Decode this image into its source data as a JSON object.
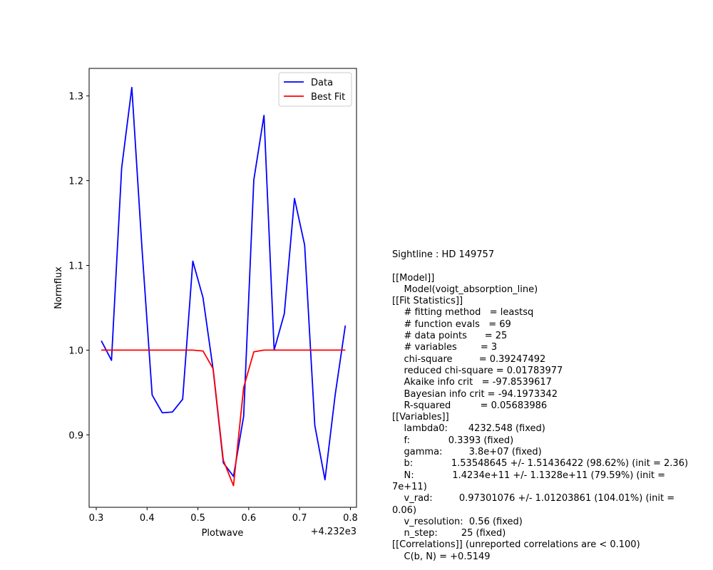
{
  "chart_data": {
    "type": "line",
    "xlabel": "Plotwave",
    "ylabel": "Normflux",
    "x_offset_text": "+4.232e3",
    "x_offset": 4232,
    "xlim": [
      4232.286,
      4232.812
    ],
    "ylim": [
      0.8145,
      1.3325
    ],
    "xticks": [
      0.3,
      0.4,
      0.5,
      0.6,
      0.7,
      0.8
    ],
    "xtick_labels": [
      "0.3",
      "0.4",
      "0.5",
      "0.6",
      "0.7",
      "0.8"
    ],
    "yticks": [
      0.9,
      1.0,
      1.1,
      1.2,
      1.3
    ],
    "ytick_labels": [
      "0.9",
      "1.0",
      "1.1",
      "1.2",
      "1.3"
    ],
    "grid": false,
    "legend_position": "upper right",
    "x": [
      4232.31,
      4232.33,
      4232.35,
      4232.37,
      4232.39,
      4232.41,
      4232.43,
      4232.45,
      4232.47,
      4232.49,
      4232.51,
      4232.53,
      4232.55,
      4232.57,
      4232.59,
      4232.61,
      4232.63,
      4232.65,
      4232.67,
      4232.69,
      4232.71,
      4232.73,
      4232.75,
      4232.77,
      4232.79
    ],
    "series": [
      {
        "name": "Data",
        "color": "#0000ff",
        "values": [
          1.011,
          0.988,
          1.215,
          1.31,
          1.12,
          0.947,
          0.926,
          0.927,
          0.942,
          1.105,
          1.062,
          0.977,
          0.867,
          0.851,
          0.922,
          1.201,
          1.277,
          1.0,
          1.043,
          1.179,
          1.124,
          0.911,
          0.847,
          0.947,
          1.029
        ]
      },
      {
        "name": "Best Fit",
        "color": "#ff0000",
        "values": [
          1.0,
          1.0,
          1.0,
          1.0,
          1.0,
          1.0,
          1.0,
          1.0,
          1.0,
          1.0,
          0.999,
          0.978,
          0.87,
          0.84,
          0.956,
          0.998,
          1.0,
          1.0,
          1.0,
          1.0,
          1.0,
          1.0,
          1.0,
          1.0,
          1.0
        ]
      }
    ]
  },
  "fit_report": [
    "Sightline : HD 149757",
    "",
    "[[Model]]",
    "    Model(voigt_absorption_line)",
    "[[Fit Statistics]]",
    "    # fitting method   = leastsq",
    "    # function evals   = 69",
    "    # data points      = 25",
    "    # variables        = 3",
    "    chi-square         = 0.39247492",
    "    reduced chi-square = 0.01783977",
    "    Akaike info crit   = -97.8539617",
    "    Bayesian info crit = -94.1973342",
    "    R-squared          = 0.05683986",
    "[[Variables]]",
    "    lambda0:       4232.548 (fixed)",
    "    f:             0.3393 (fixed)",
    "    gamma:         3.8e+07 (fixed)",
    "    b:             1.53548645 +/- 1.51436422 (98.62%) (init = 2.36)",
    "    N:             1.4234e+11 +/- 1.1328e+11 (79.59%) (init =",
    "7e+11)",
    "    v_rad:         0.97301076 +/- 1.01203861 (104.01%) (init =",
    "0.06)",
    "    v_resolution:  0.56 (fixed)",
    "    n_step:        25 (fixed)",
    "[[Correlations]] (unreported correlations are < 0.100)",
    "    C(b, N) = +0.5149"
  ]
}
